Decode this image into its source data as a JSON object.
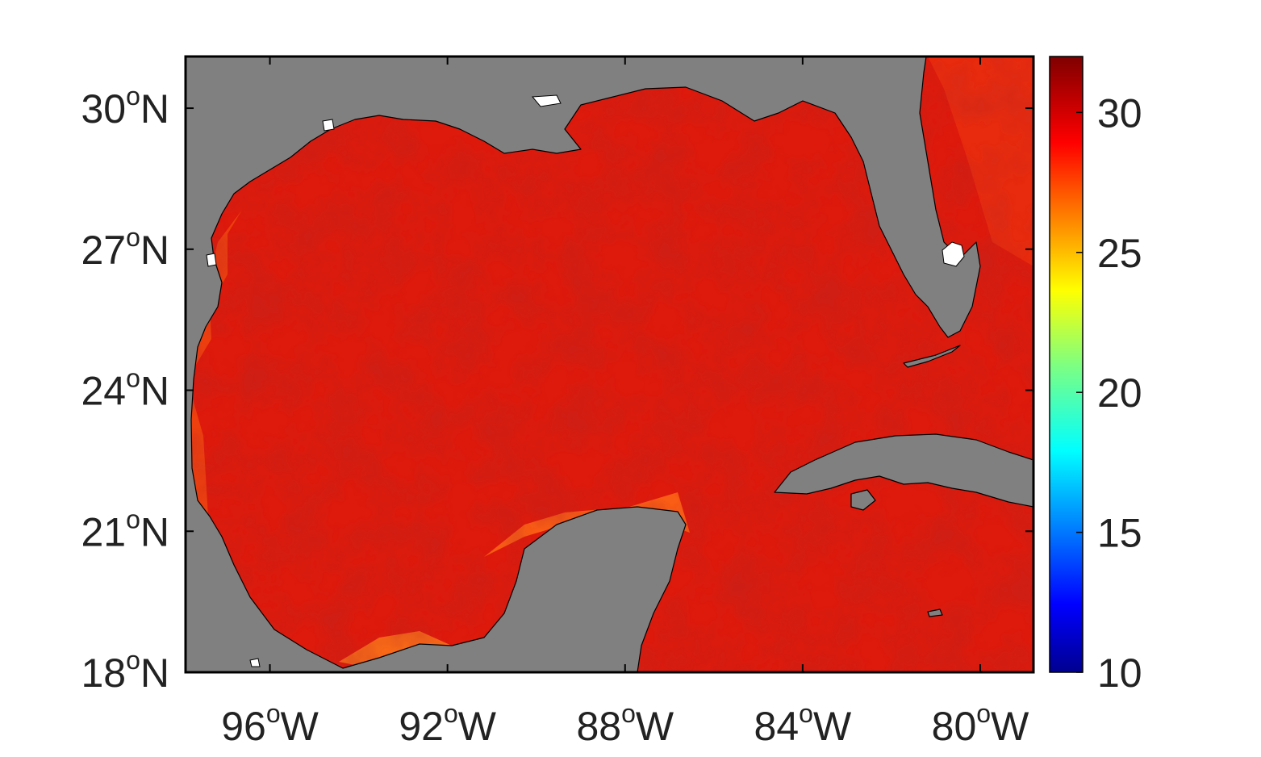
{
  "map": {
    "lat_ticks": [
      {
        "value": 30,
        "label": "30",
        "sup": "o",
        "hemi": "N"
      },
      {
        "value": 27,
        "label": "27",
        "sup": "o",
        "hemi": "N"
      },
      {
        "value": 24,
        "label": "24",
        "sup": "o",
        "hemi": "N"
      },
      {
        "value": 21,
        "label": "21",
        "sup": "o",
        "hemi": "N"
      },
      {
        "value": 18,
        "label": "18",
        "sup": "o",
        "hemi": "N"
      }
    ],
    "lon_ticks": [
      {
        "value": -96,
        "label": "96",
        "sup": "o",
        "hemi": "W"
      },
      {
        "value": -92,
        "label": "92",
        "sup": "o",
        "hemi": "W"
      },
      {
        "value": -88,
        "label": "88",
        "sup": "o",
        "hemi": "W"
      },
      {
        "value": -84,
        "label": "84",
        "sup": "o",
        "hemi": "W"
      },
      {
        "value": -80,
        "label": "80",
        "sup": "o",
        "hemi": "W"
      }
    ],
    "extent": {
      "lon_min": -97.9,
      "lon_max": -78.8,
      "lat_min": 18.0,
      "lat_max": 31.1
    },
    "land_color": "#808080",
    "ocean_color": "#dd1a0c",
    "warm_shelf_color": "#ff5a12"
  },
  "colorbar": {
    "ticks": [
      "30",
      "25",
      "20",
      "15",
      "10"
    ],
    "range": [
      10,
      32
    ],
    "colormap": "jet"
  }
}
